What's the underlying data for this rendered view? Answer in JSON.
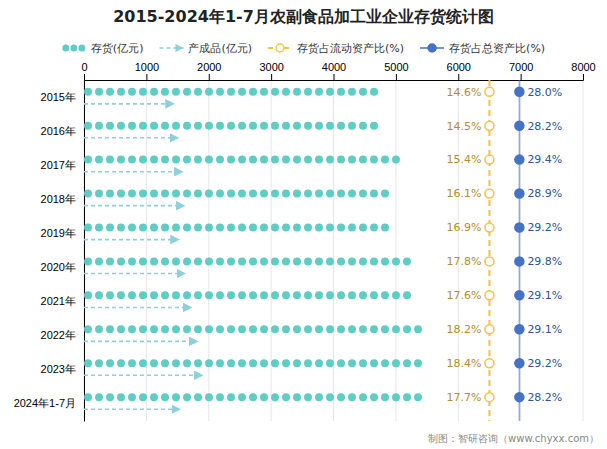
{
  "chart_data": {
    "type": "bar",
    "orientation": "horizontal",
    "title": "2015-2024年1-7月农副食品加工业企业存货统计图",
    "categories": [
      "2015年",
      "2016年",
      "2017年",
      "2018年",
      "2019年",
      "2020年",
      "2021年",
      "2022年",
      "2023年",
      "2024年1-7月"
    ],
    "series": [
      {
        "name": "存货(亿元)",
        "type": "bar",
        "marker": "circle",
        "color": "#5ECEC4",
        "values": [
          4780,
          4880,
          5100,
          4980,
          5030,
          5400,
          5340,
          5560,
          5590,
          5510
        ]
      },
      {
        "name": "产成品(亿元)",
        "type": "bar",
        "marker": "triangle",
        "line_style": "dashed",
        "color": "#8ECFDC",
        "values": [
          1380,
          1450,
          1520,
          1550,
          1460,
          1560,
          1660,
          1760,
          1840,
          1480
        ]
      },
      {
        "name": "存货占流动资产比(%)",
        "type": "label",
        "marker": "circle",
        "line_style": "dashed",
        "color": "#F5C242",
        "values": [
          14.6,
          14.5,
          15.4,
          16.1,
          16.9,
          17.8,
          17.6,
          18.2,
          18.4,
          17.7
        ],
        "value_labels": [
          "14.6%",
          "14.5%",
          "15.4%",
          "16.1%",
          "16.9%",
          "17.8%",
          "17.6%",
          "18.2%",
          "18.4%",
          "17.7%"
        ]
      },
      {
        "name": "存货占总资产比(%)",
        "type": "label",
        "marker": "circle",
        "line_style": "solid",
        "color": "#4472C4",
        "values": [
          28.0,
          28.2,
          29.4,
          28.9,
          29.2,
          29.8,
          29.1,
          29.1,
          29.2,
          28.2
        ],
        "value_labels": [
          "28.0%",
          "28.2%",
          "29.4%",
          "28.9%",
          "29.2%",
          "29.8%",
          "29.1%",
          "29.1%",
          "29.2%",
          "28.2%"
        ]
      }
    ],
    "xlim": [
      0,
      8000
    ],
    "xticks": [
      0,
      1000,
      2000,
      3000,
      4000,
      5000,
      6000,
      7000,
      8000
    ],
    "grid": true,
    "legend": "top",
    "annotations": [
      "制图：智研咨询（www.chyxx.com）"
    ]
  }
}
